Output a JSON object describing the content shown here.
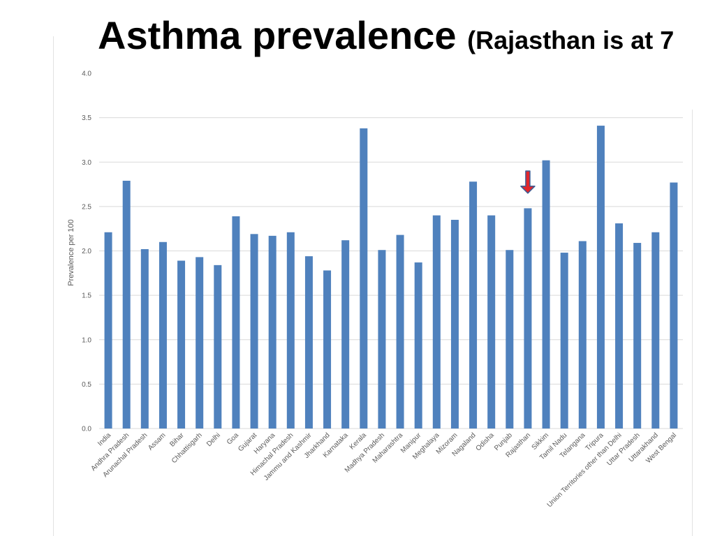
{
  "slide": {
    "title_main": "Asthma prevalence ",
    "title_sub": "(Rajasthan is at 7"
  },
  "colors": {
    "bar": "#4f81bd",
    "arrow": "#e3262b",
    "arrow_outline": "#3e5d94",
    "grid": "#d9d9d9"
  },
  "chart_data": {
    "type": "bar",
    "ylabel": "Prevalence per 100",
    "ylim": [
      0,
      4.0
    ],
    "yticks": [
      "0.0",
      "0.5",
      "1.0",
      "1.5",
      "2.0",
      "2.5",
      "3.0",
      "3.5",
      "4.0"
    ],
    "grid": true,
    "categories": [
      "India",
      "Andhra Pradesh",
      "Arunachal Pradesh",
      "Assam",
      "Bihar",
      "Chhattisgarh",
      "Delhi",
      "Goa",
      "Gujarat",
      "Haryana",
      "Himachal Pradesh",
      "Jammu and Kashmir",
      "Jharkhand",
      "Karnataka",
      "Kerala",
      "Madhya Pradesh",
      "Maharashtra",
      "Manipur",
      "Meghalaya",
      "Mizoram",
      "Nagaland",
      "Odisha",
      "Punjab",
      "Rajasthan",
      "Sikkim",
      "Tamil Nadu",
      "Telangana",
      "Tripura",
      "Union Territories other than Delhi",
      "Uttar Pradesh",
      "Uttarakhand",
      "West Bengal"
    ],
    "values": [
      2.21,
      2.79,
      2.02,
      2.1,
      1.89,
      1.93,
      1.84,
      2.39,
      2.19,
      2.17,
      2.21,
      1.94,
      1.78,
      2.12,
      3.38,
      2.01,
      2.18,
      1.87,
      2.4,
      2.35,
      2.78,
      2.4,
      2.01,
      2.48,
      3.02,
      1.98,
      2.11,
      3.41,
      2.31,
      2.09,
      2.21,
      2.77
    ],
    "annotation": {
      "category": "Rajasthan",
      "shape": "down-arrow"
    }
  }
}
